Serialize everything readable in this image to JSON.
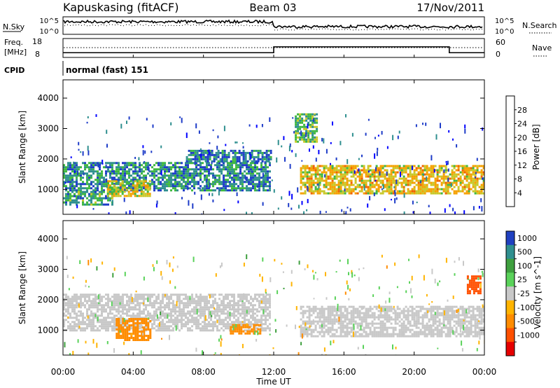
{
  "header": {
    "station": "Kapuskasing (fitACF)",
    "beam": "Beam 03",
    "date": "17/Nov/2011"
  },
  "noise_panel": {
    "left_label": "N.Sky",
    "right_label": "N.Search",
    "left_ticks": [
      "10^5",
      "10^0"
    ],
    "right_ticks": [
      "10^5",
      "10^0"
    ]
  },
  "freq_panel": {
    "left_label_1": "Freq.",
    "left_label_2": "[MHz]",
    "right_label": "Nave",
    "left_ticks": [
      "18",
      "8"
    ],
    "right_ticks": [
      "60",
      "0"
    ]
  },
  "cpid": {
    "label": "CPID",
    "value": "normal (fast) 151"
  },
  "time_axis": {
    "label": "Time UT",
    "ticks": [
      "00:00",
      "04:00",
      "08:00",
      "12:00",
      "16:00",
      "20:00",
      "00:00"
    ]
  },
  "range_axis": {
    "label": "Slant Range [km]",
    "ticks": [
      "1000",
      "2000",
      "3000",
      "4000"
    ]
  },
  "power_scale": {
    "label": "Power [dB]",
    "ticks": [
      "4",
      "8",
      "12",
      "16",
      "20",
      "24",
      "28"
    ],
    "colors": [
      "#0000ff",
      "#1e3cc8",
      "#2f8f8f",
      "#3fb83f",
      "#c8c828",
      "#f5a000",
      "#f06000",
      "#e81818"
    ]
  },
  "velocity_scale": {
    "label": "Velocity [m s^-1]",
    "ticks": [
      "1000",
      "500",
      "100",
      "25",
      "-25",
      "-100",
      "-500",
      "-1000"
    ],
    "colors": [
      "#2040c0",
      "#2f8f8f",
      "#3fa03f",
      "#5ad25a",
      "#c8c8c8",
      "#ffb400",
      "#ff8c00",
      "#ff5000",
      "#e60000"
    ]
  },
  "chart_data": {
    "type": "heatmap",
    "x_range_hours": [
      0,
      24
    ],
    "y_range_km": [
      180,
      4600
    ],
    "frequency_mhz": [
      {
        "from_hour": 0,
        "to_hour": 12,
        "value": 10.5
      },
      {
        "from_hour": 12,
        "to_hour": 22,
        "value": 13.6
      },
      {
        "from_hour": 22,
        "to_hour": 24,
        "value": 10.5
      }
    ],
    "power_features": [
      {
        "t0": 0.0,
        "t1": 11.8,
        "r0": 1000,
        "r1": 1900,
        "db": 10
      },
      {
        "t0": 0.0,
        "t1": 2.8,
        "r0": 500,
        "r1": 950,
        "db": 12
      },
      {
        "t0": 2.5,
        "t1": 5.0,
        "r0": 800,
        "r1": 1300,
        "db": 18
      },
      {
        "t0": 7.0,
        "t1": 11.8,
        "r0": 1900,
        "r1": 2300,
        "db": 9
      },
      {
        "t0": 13.5,
        "t1": 24.0,
        "r0": 900,
        "r1": 1800,
        "db": 20
      },
      {
        "t0": 13.2,
        "t1": 14.5,
        "r0": 2600,
        "r1": 3500,
        "db": 14
      }
    ],
    "velocity_features": [
      {
        "t0": 0.0,
        "t1": 11.8,
        "r0": 1000,
        "r1": 2200,
        "v": 0
      },
      {
        "t0": 3.0,
        "t1": 5.0,
        "r0": 700,
        "r1": 1400,
        "v": -300
      },
      {
        "t0": 9.5,
        "t1": 11.2,
        "r0": 900,
        "r1": 1200,
        "v": -200
      },
      {
        "t0": 13.5,
        "t1": 24.0,
        "r0": 800,
        "r1": 1800,
        "v": 0
      },
      {
        "t0": 23.0,
        "t1": 23.8,
        "r0": 2200,
        "r1": 2800,
        "v": -800
      }
    ]
  }
}
